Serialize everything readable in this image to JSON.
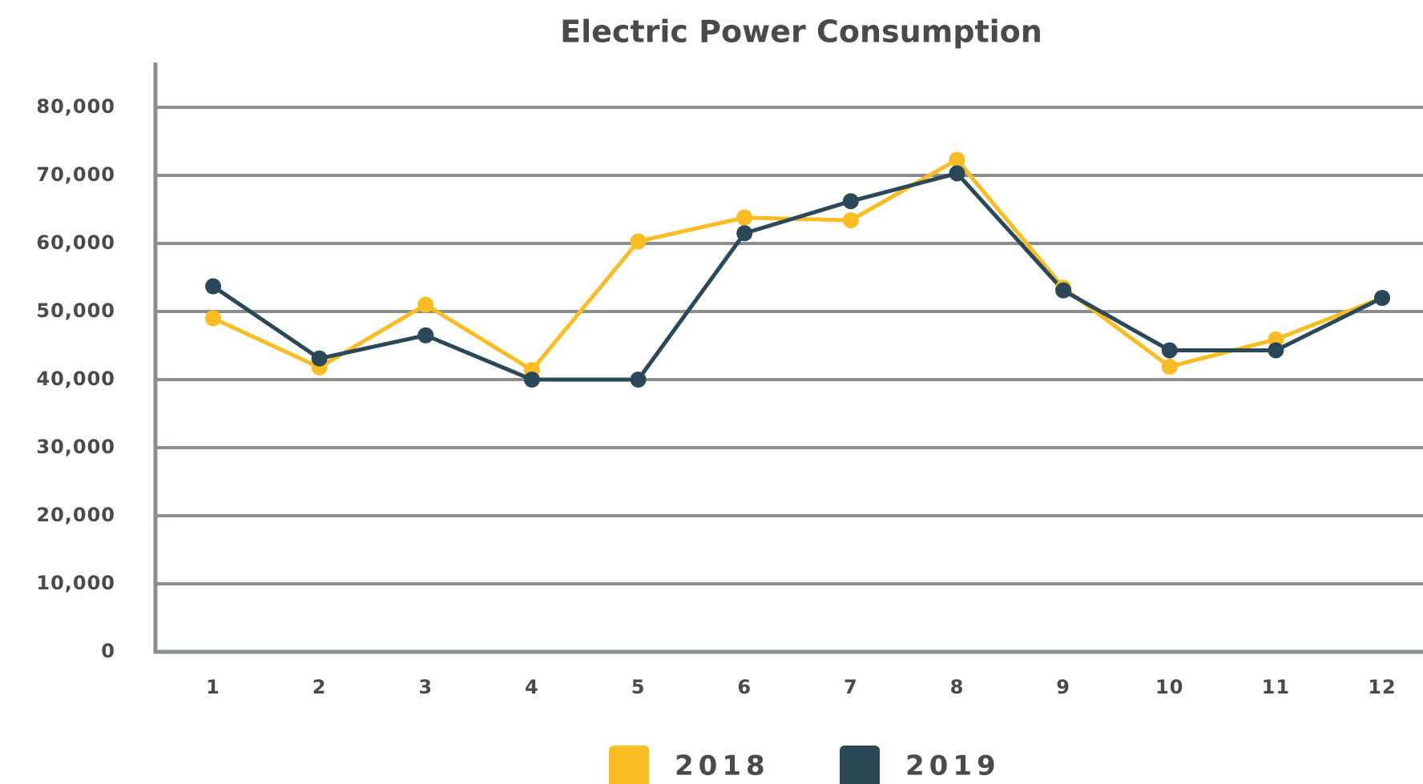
{
  "chart_data": {
    "type": "line",
    "title": "Electric Power Consumption",
    "categories": [
      "1",
      "2",
      "3",
      "4",
      "5",
      "6",
      "7",
      "8",
      "9",
      "10",
      "11",
      "12"
    ],
    "series": [
      {
        "name": "2018",
        "color": "#f9bc23",
        "values": [
          49000,
          41800,
          51000,
          41400,
          60300,
          63800,
          63400,
          72300,
          53500,
          41900,
          45900,
          52000
        ]
      },
      {
        "name": "2019",
        "color": "#2a4858",
        "values": [
          53700,
          43100,
          46500,
          40000,
          40000,
          61500,
          66200,
          70300,
          53100,
          44300,
          44300,
          52000
        ]
      }
    ],
    "ylim": [
      0,
      80000
    ],
    "yticks": [
      0,
      {
        "value": 10000,
        "label": "10,000"
      },
      {
        "value": 20000,
        "label": "20,000"
      },
      {
        "value": 30000,
        "label": "30,000"
      },
      {
        "value": 40000,
        "label": "40,000"
      },
      {
        "value": 50000,
        "label": "50,000"
      },
      {
        "value": 60000,
        "label": "60,000"
      },
      {
        "value": 70000,
        "label": "70,000"
      },
      {
        "value": 80000,
        "label": "80,000"
      }
    ],
    "grid": true
  }
}
